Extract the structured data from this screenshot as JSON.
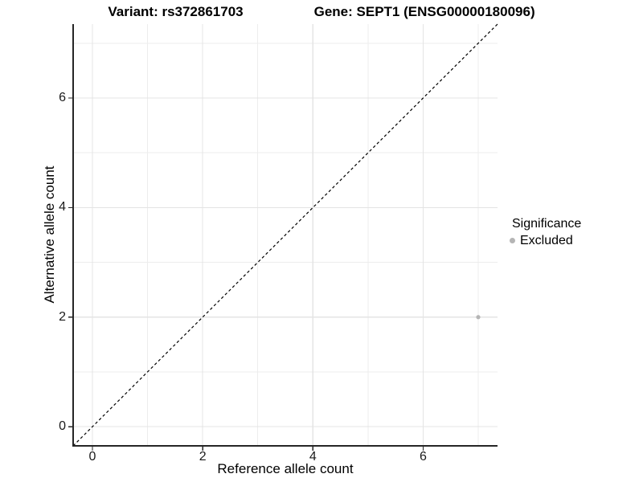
{
  "title": {
    "left": "Variant: rs372861703",
    "right": "Gene: SEPT1 (ENSG00000180096)"
  },
  "chart_data": {
    "type": "scatter",
    "title": "Variant: rs372861703   Gene: SEPT1 (ENSG00000180096)",
    "xlabel": "Reference allele count",
    "ylabel": "Alternative allele count",
    "xlim": [
      -0.35,
      7.35
    ],
    "ylim": [
      -0.35,
      7.35
    ],
    "x_ticks": [
      0,
      2,
      4,
      6
    ],
    "y_ticks": [
      0,
      2,
      4,
      6
    ],
    "x_minor_ticks": [
      1,
      3,
      5,
      7
    ],
    "y_minor_ticks": [
      1,
      3,
      5,
      7
    ],
    "grid": true,
    "legend": {
      "title": "Significance",
      "position": "right",
      "entries": [
        {
          "label": "Excluded",
          "color": "#b5b5b5"
        }
      ]
    },
    "series": [
      {
        "name": "Excluded",
        "color": "#b5b5b5",
        "points": [
          [
            7,
            2
          ]
        ]
      }
    ],
    "identity_line": {
      "style": "dashed",
      "color": "#000000",
      "from": [
        -0.35,
        -0.35
      ],
      "to": [
        7.35,
        7.35
      ]
    }
  },
  "colors": {
    "background": "#ffffff",
    "grid_major": "#e4e4e4",
    "grid_minor": "#ededed",
    "axis": "#262626",
    "tick_text": "#1a1a1a",
    "point": "#b5b5b5"
  }
}
